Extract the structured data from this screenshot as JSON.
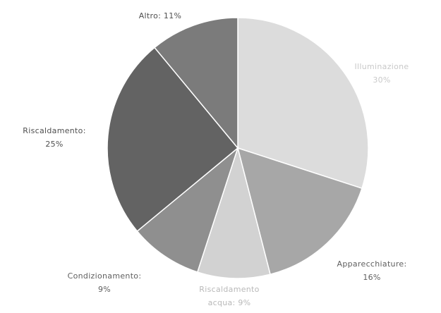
{
  "chart_data": {
    "type": "pie",
    "start_angle_deg": 0,
    "direction": "clockwise",
    "slices": [
      {
        "label": "Illuminazione",
        "label_line2": "30%",
        "value": 30,
        "color": "#dcdcdc",
        "label_color": "#c9c9c9"
      },
      {
        "label": "Apparecchiature:",
        "label_line2": "16%",
        "value": 16,
        "color": "#a7a7a7",
        "label_color": "#5f5f5f"
      },
      {
        "label": "Riscaldamento",
        "label_line2": "acqua: 9%",
        "value": 9,
        "color": "#d2d2d2",
        "label_color": "#b9b9b9"
      },
      {
        "label": "Condizionamento:",
        "label_line2": "9%",
        "value": 9,
        "color": "#8f8f8f",
        "label_color": "#5f5f5f"
      },
      {
        "label": "Riscaldamento:",
        "label_line2": "25%",
        "value": 25,
        "color": "#636363",
        "label_color": "#4f4f4f"
      },
      {
        "label": "Altro: 11%",
        "label_line2": "",
        "value": 11,
        "color": "#7b7b7b",
        "label_color": "#4f4f4f"
      }
    ]
  }
}
